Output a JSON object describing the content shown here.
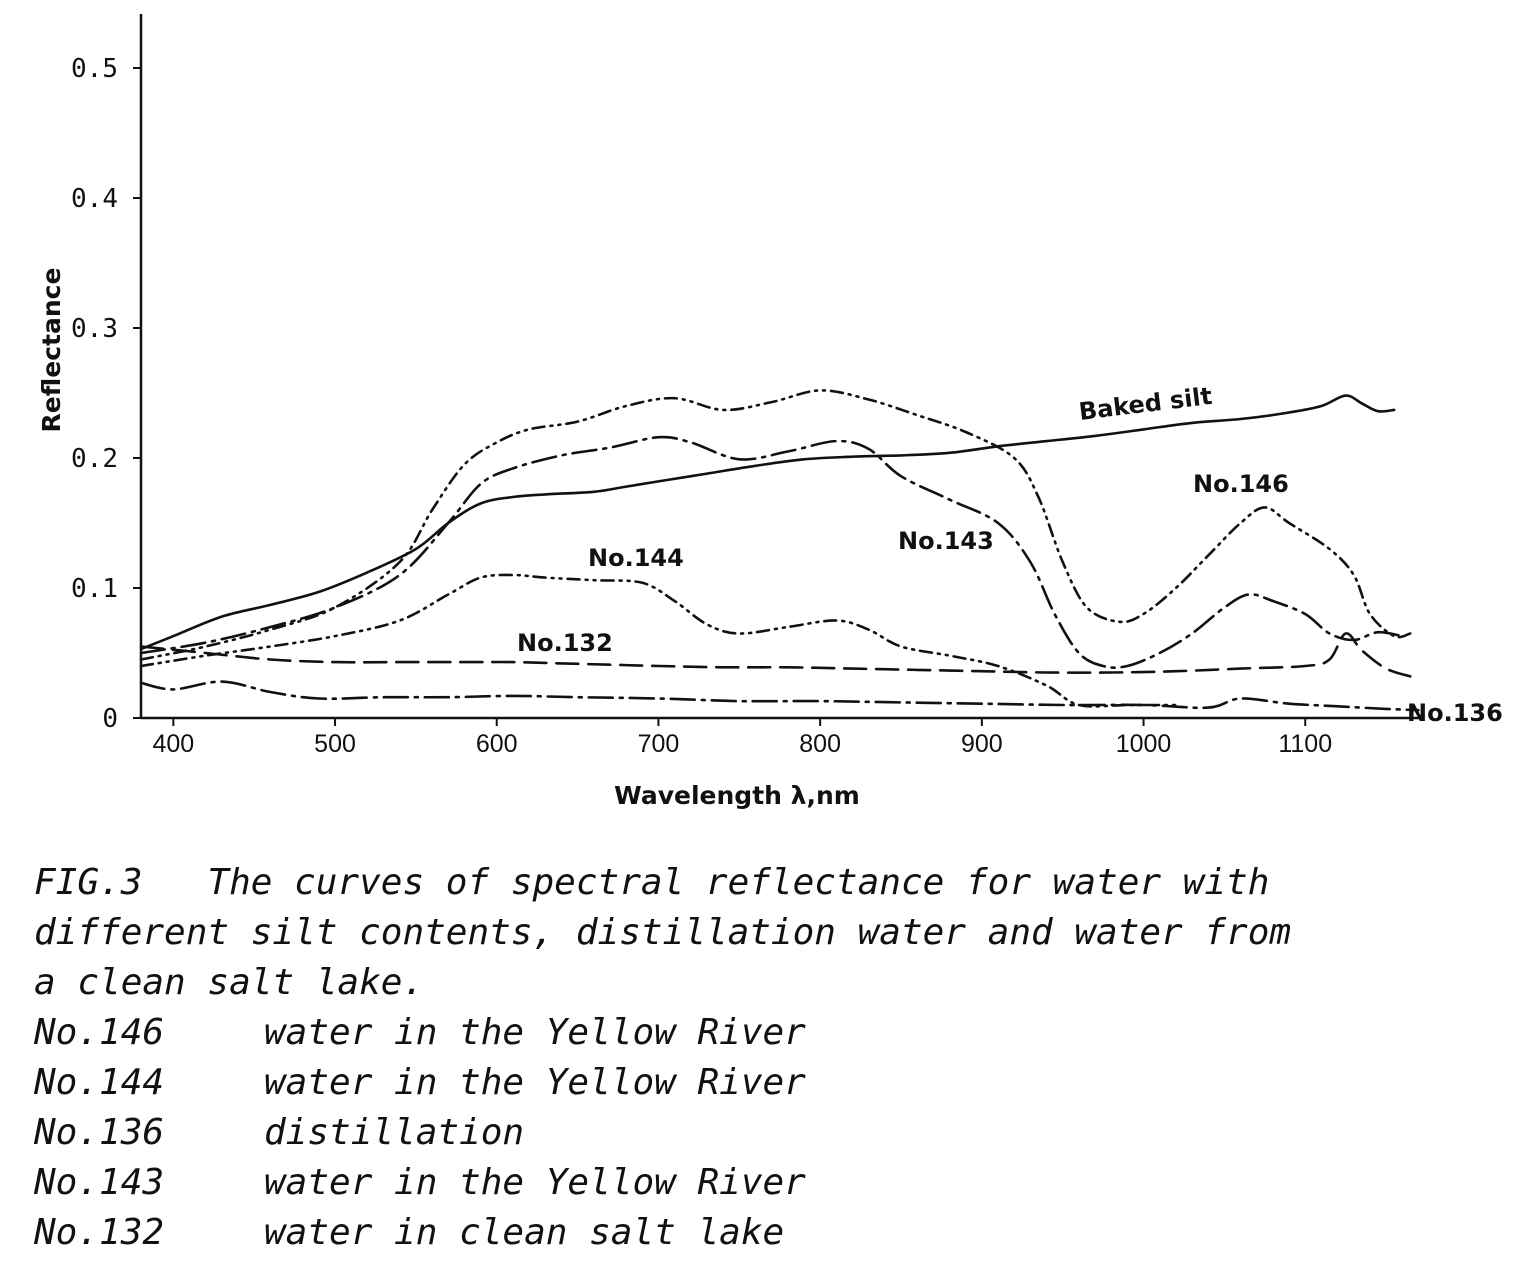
{
  "chart_data": {
    "type": "line",
    "xlabel": "Wavelength λ,nm",
    "ylabel": "Reflectance",
    "xlim": [
      380,
      1170
    ],
    "ylim": [
      0,
      0.5
    ],
    "xticks": [
      400,
      500,
      600,
      700,
      800,
      900,
      1000,
      1100
    ],
    "xtick_labels": [
      "400",
      "500",
      "600",
      "700",
      "800",
      "900",
      "1000",
      "1100"
    ],
    "yticks": [
      0,
      0.1,
      0.2,
      0.3,
      0.4,
      0.5
    ],
    "ytick_labels": [
      "0",
      "0.1",
      "0.2",
      "0.3",
      "0.4",
      "0.5"
    ],
    "grid": false,
    "series": [
      {
        "name": "Baked silt",
        "style": "solid",
        "x": [
          380,
          400,
          430,
          460,
          490,
          520,
          550,
          570,
          590,
          610,
          630,
          660,
          680,
          700,
          730,
          760,
          790,
          820,
          850,
          880,
          910,
          940,
          970,
          1000,
          1030,
          1060,
          1090,
          1110,
          1125,
          1135,
          1145,
          1155
        ],
        "y": [
          0.053,
          0.063,
          0.078,
          0.087,
          0.097,
          0.112,
          0.13,
          0.15,
          0.165,
          0.17,
          0.172,
          0.174,
          0.178,
          0.182,
          0.188,
          0.194,
          0.199,
          0.201,
          0.202,
          0.204,
          0.209,
          0.213,
          0.217,
          0.222,
          0.227,
          0.23,
          0.235,
          0.24,
          0.248,
          0.242,
          0.236,
          0.237
        ]
      },
      {
        "name": "No.146",
        "style": "dash-dot-dot",
        "x": [
          380,
          420,
          460,
          500,
          540,
          560,
          580,
          600,
          620,
          650,
          680,
          710,
          740,
          770,
          800,
          830,
          860,
          890,
          920,
          935,
          950,
          965,
          985,
          1000,
          1020,
          1040,
          1060,
          1075,
          1090,
          1115,
          1130,
          1140,
          1155,
          1165
        ],
        "y": [
          0.045,
          0.055,
          0.068,
          0.085,
          0.12,
          0.16,
          0.195,
          0.212,
          0.222,
          0.228,
          0.24,
          0.246,
          0.237,
          0.243,
          0.252,
          0.245,
          0.233,
          0.22,
          0.2,
          0.17,
          0.12,
          0.085,
          0.074,
          0.08,
          0.1,
          0.125,
          0.15,
          0.162,
          0.15,
          0.13,
          0.11,
          0.08,
          0.063,
          0.065
        ]
      },
      {
        "name": "No.143",
        "style": "long-dash-dot",
        "x": [
          380,
          420,
          460,
          500,
          540,
          570,
          590,
          610,
          640,
          670,
          700,
          720,
          750,
          780,
          810,
          830,
          850,
          880,
          910,
          930,
          945,
          960,
          975,
          990,
          1010,
          1030,
          1050,
          1065,
          1080,
          1100,
          1115,
          1130,
          1145,
          1160
        ],
        "y": [
          0.05,
          0.058,
          0.07,
          0.085,
          0.11,
          0.15,
          0.18,
          0.192,
          0.202,
          0.208,
          0.216,
          0.212,
          0.199,
          0.205,
          0.213,
          0.207,
          0.186,
          0.168,
          0.15,
          0.12,
          0.08,
          0.05,
          0.04,
          0.04,
          0.05,
          0.065,
          0.085,
          0.095,
          0.09,
          0.08,
          0.065,
          0.06,
          0.066,
          0.063
        ]
      },
      {
        "name": "No.144",
        "style": "dash-dot-dot",
        "x": [
          380,
          420,
          460,
          500,
          540,
          570,
          590,
          610,
          630,
          660,
          690,
          710,
          730,
          750,
          780,
          810,
          830,
          850,
          880,
          910,
          940,
          960,
          990,
          1020
        ],
        "y": [
          0.04,
          0.048,
          0.055,
          0.063,
          0.075,
          0.095,
          0.108,
          0.11,
          0.108,
          0.106,
          0.104,
          0.09,
          0.072,
          0.065,
          0.07,
          0.075,
          0.068,
          0.055,
          0.048,
          0.04,
          0.025,
          0.01,
          0.01,
          0.01
        ]
      },
      {
        "name": "No.132",
        "style": "dashed",
        "x": [
          380,
          420,
          460,
          500,
          540,
          580,
          610,
          640,
          670,
          700,
          740,
          780,
          820,
          860,
          900,
          940,
          980,
          1020,
          1060,
          1100,
          1115,
          1125,
          1135,
          1150,
          1165
        ],
        "y": [
          0.055,
          0.05,
          0.045,
          0.043,
          0.043,
          0.043,
          0.043,
          0.042,
          0.041,
          0.04,
          0.039,
          0.039,
          0.038,
          0.037,
          0.036,
          0.035,
          0.035,
          0.036,
          0.038,
          0.04,
          0.045,
          0.065,
          0.052,
          0.038,
          0.032
        ]
      },
      {
        "name": "No.136",
        "style": "long-dash-dot",
        "x": [
          380,
          400,
          430,
          460,
          490,
          530,
          570,
          610,
          650,
          700,
          750,
          800,
          850,
          900,
          950,
          1000,
          1040,
          1060,
          1090,
          1120,
          1150,
          1170
        ],
        "y": [
          0.027,
          0.022,
          0.028,
          0.02,
          0.015,
          0.016,
          0.016,
          0.017,
          0.016,
          0.015,
          0.013,
          0.013,
          0.012,
          0.011,
          0.01,
          0.01,
          0.008,
          0.015,
          0.011,
          0.009,
          0.007,
          0.006
        ]
      }
    ],
    "annotations": [
      "Baked silt",
      "No.146",
      "No.143",
      "No.144",
      "No.132",
      "No.136"
    ]
  },
  "caption": {
    "lines": [
      "FIG.3   The curves of spectral reflectance for water with",
      "different silt contents, distillation water and water from",
      "a clean salt lake."
    ],
    "legend": [
      {
        "code": "No.146",
        "text": "water in the Yellow River"
      },
      {
        "code": "No.144",
        "text": "water in the Yellow River"
      },
      {
        "code": "No.136",
        "text": "distillation"
      },
      {
        "code": "No.143",
        "text": "water in the Yellow River"
      },
      {
        "code": "No.132",
        "text": "water in clean salt lake"
      }
    ]
  }
}
